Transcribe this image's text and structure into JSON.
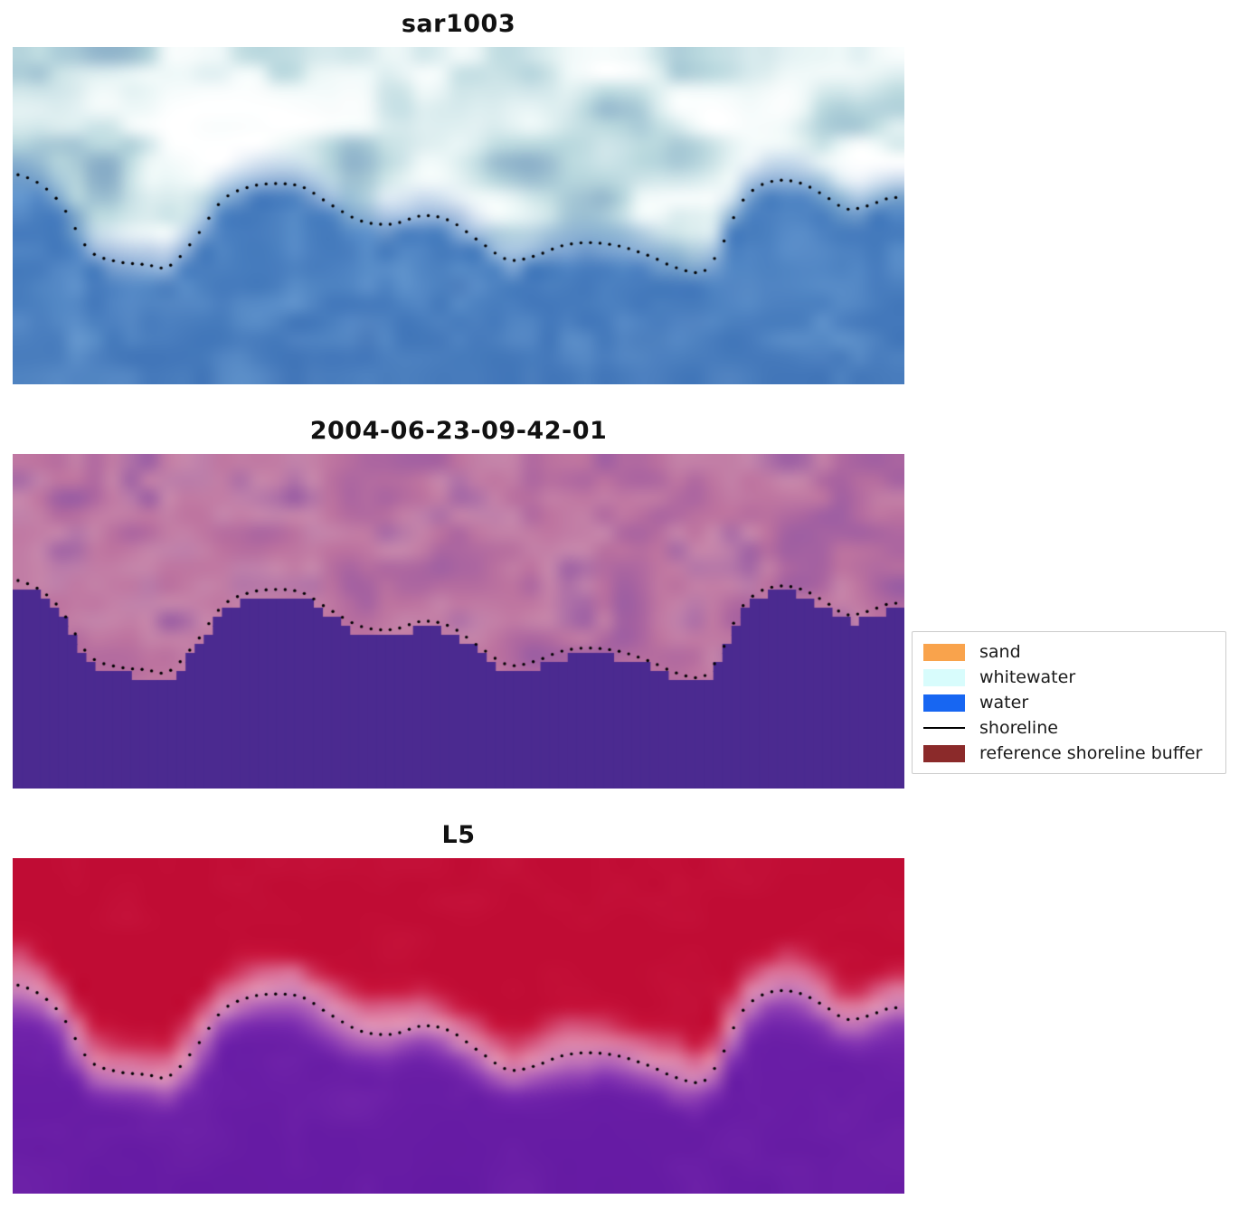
{
  "figure": {
    "background": "#ffffff"
  },
  "panels": [
    {
      "title": "sar1003",
      "kind": "sar",
      "seed": 11
    },
    {
      "title": "2004-06-23-09-42-01",
      "kind": "classified",
      "seed": 23
    },
    {
      "title": "L5",
      "kind": "l5",
      "seed": 37
    }
  ],
  "legend": {
    "items": [
      {
        "label": "sand",
        "color": "#f9a34c",
        "type": "patch"
      },
      {
        "label": "whitewater",
        "color": "#d8fcfc",
        "type": "patch"
      },
      {
        "label": "water",
        "color": "#1766f2",
        "type": "patch"
      },
      {
        "label": "shoreline",
        "color": "#000000",
        "type": "line"
      },
      {
        "label": "reference shoreline buffer",
        "color": "#8b2a2a",
        "type": "patch"
      }
    ]
  },
  "chart_data": {
    "type": "heatmap",
    "title": "",
    "panels": [
      {
        "title": "sar1003",
        "kind": "sar satellite image with detected shoreline dots"
      },
      {
        "title": "2004-06-23-09-42-01",
        "kind": "classified image, solid water mask with shoreline dots"
      },
      {
        "title": "L5",
        "kind": "false-color Landsat 5 image with shoreline dots"
      }
    ],
    "shoreline_points": [
      [
        0.0,
        0.375
      ],
      [
        0.03,
        0.405
      ],
      [
        0.055,
        0.47
      ],
      [
        0.085,
        0.6
      ],
      [
        0.115,
        0.635
      ],
      [
        0.15,
        0.645
      ],
      [
        0.175,
        0.65
      ],
      [
        0.205,
        0.565
      ],
      [
        0.235,
        0.455
      ],
      [
        0.265,
        0.415
      ],
      [
        0.295,
        0.405
      ],
      [
        0.325,
        0.415
      ],
      [
        0.355,
        0.465
      ],
      [
        0.39,
        0.515
      ],
      [
        0.425,
        0.525
      ],
      [
        0.46,
        0.5
      ],
      [
        0.49,
        0.515
      ],
      [
        0.52,
        0.57
      ],
      [
        0.555,
        0.63
      ],
      [
        0.585,
        0.62
      ],
      [
        0.615,
        0.59
      ],
      [
        0.645,
        0.58
      ],
      [
        0.68,
        0.59
      ],
      [
        0.715,
        0.62
      ],
      [
        0.745,
        0.655
      ],
      [
        0.775,
        0.665
      ],
      [
        0.795,
        0.59
      ],
      [
        0.815,
        0.47
      ],
      [
        0.835,
        0.415
      ],
      [
        0.86,
        0.395
      ],
      [
        0.885,
        0.405
      ],
      [
        0.91,
        0.44
      ],
      [
        0.935,
        0.48
      ],
      [
        0.96,
        0.47
      ],
      [
        0.98,
        0.45
      ],
      [
        1.0,
        0.445
      ]
    ],
    "dot_step": 0.0107,
    "dot_radius": 1.7,
    "dot_color": "#000000",
    "grid": {
      "cols": 49,
      "rows": 19
    },
    "palettes": {
      "sar": {
        "water": [
          "#3c6cb0",
          "#5b8fca",
          "#4278bb",
          "#6fa2d6"
        ],
        "cloud": [
          "#86abc6",
          "#b9d8de",
          "#eef8f8",
          "#ffffff"
        ]
      },
      "classified": {
        "water": "#4b2a90",
        "land": [
          "#8f58a5",
          "#a863a0",
          "#bd739f",
          "#c687ab",
          "#9a5da3"
        ]
      },
      "l5": {
        "ramp": [
          "#c00c34",
          "#ca1940",
          "#d9668e",
          "#e096b8",
          "#a95ab8",
          "#7b2cb0",
          "#6a1ea6"
        ],
        "deep": "#520d98"
      }
    }
  }
}
